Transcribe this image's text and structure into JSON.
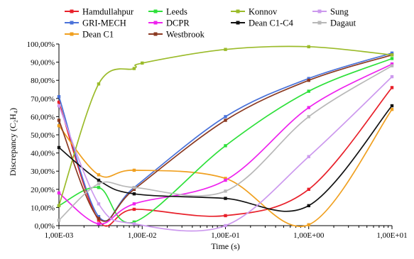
{
  "chart_data": {
    "type": "line",
    "title": "",
    "xlabel": "Time (s)",
    "ylabel": "Discrepancy (C₂H₄)",
    "xscale": "log",
    "xlim": [
      0.001,
      10
    ],
    "ylim": [
      0,
      100
    ],
    "grid": false,
    "legend_position": "top",
    "x_ticks": [
      "1,00E-03",
      "1,00E-02",
      "1,00E-01",
      "1,00E+00",
      "1,00E+01"
    ],
    "y_ticks": [
      "0,00%",
      "10,00%",
      "20,00%",
      "30,00%",
      "40,00%",
      "50,00%",
      "60,00%",
      "70,00%",
      "80,00%",
      "90,00%",
      "100,00%"
    ],
    "series": [
      {
        "name": "Hamdullahpur",
        "color": "#e8202a",
        "x": [
          0.001,
          0.003,
          0.008,
          0.1,
          1,
          10
        ],
        "y": [
          68,
          3,
          9,
          5.5,
          20,
          76
        ]
      },
      {
        "name": "GRI-MECH",
        "color": "#4a72d9",
        "x": [
          0.001,
          0.003,
          0.008,
          0.1,
          1,
          10
        ],
        "y": [
          71,
          5,
          21,
          60,
          81,
          95
        ]
      },
      {
        "name": "Dean C1",
        "color": "#f0a020",
        "x": [
          0.001,
          0.003,
          0.008,
          0.1,
          1,
          10
        ],
        "y": [
          55,
          28,
          30.5,
          26,
          0.5,
          64
        ]
      },
      {
        "name": "Leeds",
        "color": "#2ee03a",
        "x": [
          0.001,
          0.003,
          0.008,
          0.1,
          1,
          10
        ],
        "y": [
          11,
          21,
          2,
          44,
          74,
          92
        ]
      },
      {
        "name": "DCPR",
        "color": "#ee22ee",
        "x": [
          0.001,
          0.003,
          0.008,
          0.1,
          1,
          10
        ],
        "y": [
          18,
          1,
          12,
          25,
          65,
          89
        ]
      },
      {
        "name": "Westbrook",
        "color": "#8b3a22",
        "x": [
          0.001,
          0.003,
          0.008,
          0.1,
          1,
          10
        ],
        "y": [
          58,
          4,
          20,
          58,
          80,
          94
        ]
      },
      {
        "name": "Konnov",
        "color": "#9bbb2a",
        "x": [
          0.001,
          0.003,
          0.008,
          0.01,
          0.1,
          1,
          10
        ],
        "y": [
          11,
          78,
          86.5,
          89.5,
          97,
          98.5,
          94
        ]
      },
      {
        "name": "Dean C1-C4",
        "color": "#111111",
        "x": [
          0.001,
          0.003,
          0.008,
          0.1,
          1,
          10
        ],
        "y": [
          43,
          25,
          17.5,
          15,
          11,
          66
        ]
      },
      {
        "name": "Sung",
        "color": "#cc99ee",
        "x": [
          0.001,
          0.003,
          0.008,
          0.1,
          1,
          10
        ],
        "y": [
          66,
          12,
          1,
          0,
          38,
          82
        ]
      },
      {
        "name": "Dagaut",
        "color": "#b8b8b8",
        "x": [
          0.001,
          0.003,
          0.008,
          0.1,
          1,
          10
        ],
        "y": [
          3,
          23,
          21,
          19,
          60,
          88
        ]
      }
    ]
  }
}
